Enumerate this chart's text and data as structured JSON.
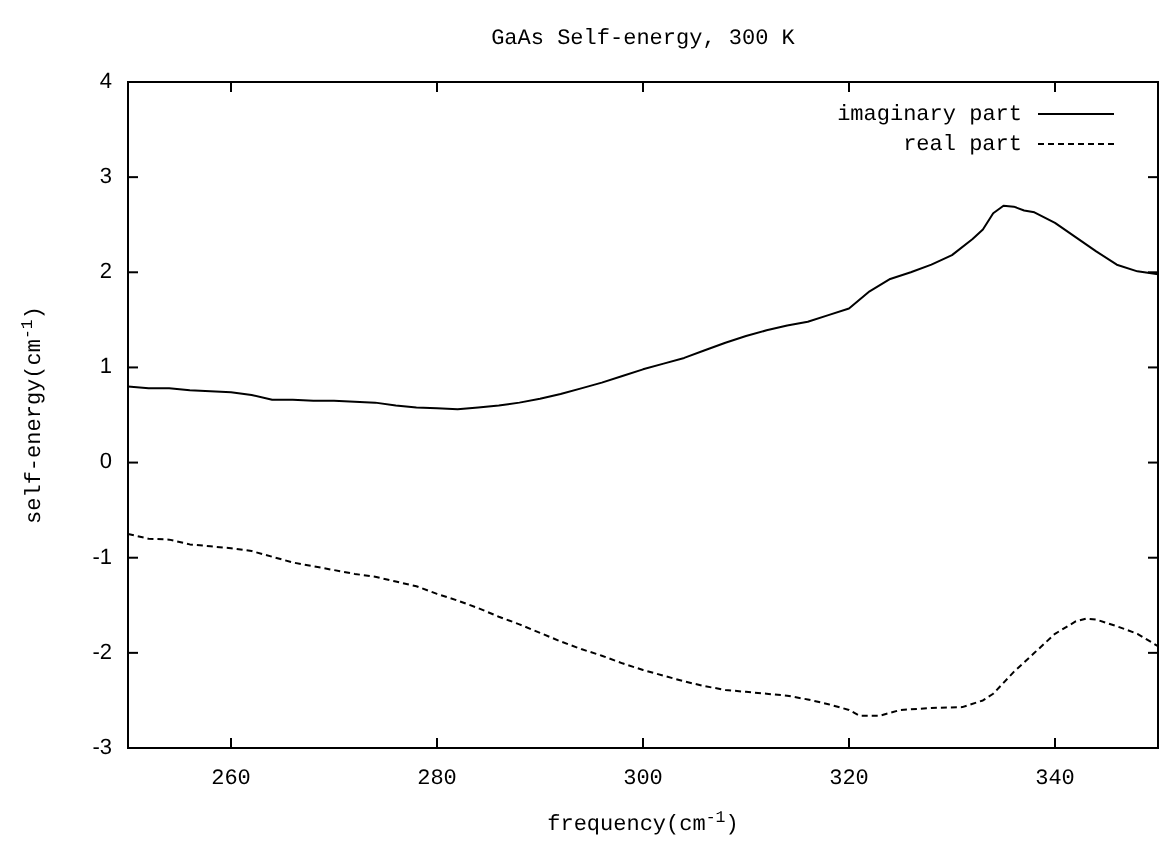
{
  "chart_data": {
    "type": "line",
    "title": "GaAs Self-energy, 300 K",
    "xlabel": "frequency(cm$^{-1}$)",
    "ylabel": "self-energy(cm$^{-1}$)",
    "xlim": [
      250,
      350
    ],
    "xticks": [
      260,
      280,
      300,
      320,
      340
    ],
    "ylim": [
      -3,
      4
    ],
    "yticks": [
      -3,
      -2,
      -1,
      0,
      1,
      2,
      3,
      4
    ],
    "grid": false,
    "legend": "top right",
    "marker": "none",
    "series": [
      {
        "name": "imaginary part",
        "color": "#000000",
        "line_style": "solid",
        "x": [
          250,
          252,
          254,
          256,
          258,
          260,
          262,
          264,
          266,
          268,
          270,
          272,
          274,
          276,
          278,
          280,
          282,
          284,
          286,
          288,
          290,
          292,
          294,
          296,
          298,
          300,
          302,
          304,
          306,
          308,
          310,
          312,
          314,
          316,
          318,
          320,
          322,
          324,
          326,
          328,
          330,
          332,
          333,
          334,
          335,
          336,
          337,
          338,
          340,
          342,
          344,
          346,
          348,
          350
        ],
        "values": [
          0.8,
          0.78,
          0.78,
          0.76,
          0.75,
          0.74,
          0.71,
          0.66,
          0.66,
          0.65,
          0.65,
          0.64,
          0.63,
          0.6,
          0.58,
          0.57,
          0.56,
          0.58,
          0.6,
          0.63,
          0.67,
          0.72,
          0.78,
          0.84,
          0.91,
          0.98,
          1.04,
          1.1,
          1.18,
          1.26,
          1.33,
          1.39,
          1.44,
          1.48,
          1.55,
          1.62,
          1.8,
          1.93,
          2.0,
          2.08,
          2.18,
          2.35,
          2.45,
          2.62,
          2.7,
          2.69,
          2.65,
          2.63,
          2.52,
          2.37,
          2.22,
          2.08,
          2.01,
          1.98
        ]
      },
      {
        "name": "real part",
        "color": "#000000",
        "line_style": "dashed",
        "x": [
          250,
          252,
          254,
          256,
          258,
          260,
          262,
          264,
          266,
          268,
          270,
          272,
          274,
          276,
          278,
          280,
          282,
          284,
          286,
          288,
          290,
          292,
          294,
          296,
          298,
          300,
          302,
          304,
          306,
          308,
          310,
          312,
          314,
          316,
          318,
          320,
          321,
          323,
          325,
          328,
          331,
          333,
          334,
          336,
          338,
          340,
          342,
          343,
          344,
          346,
          348,
          350
        ],
        "values": [
          -0.75,
          -0.8,
          -0.81,
          -0.86,
          -0.88,
          -0.9,
          -0.93,
          -0.99,
          -1.05,
          -1.09,
          -1.13,
          -1.17,
          -1.2,
          -1.25,
          -1.3,
          -1.38,
          -1.45,
          -1.53,
          -1.62,
          -1.7,
          -1.79,
          -1.88,
          -1.96,
          -2.03,
          -2.11,
          -2.18,
          -2.24,
          -2.3,
          -2.35,
          -2.39,
          -2.41,
          -2.43,
          -2.45,
          -2.49,
          -2.54,
          -2.6,
          -2.66,
          -2.66,
          -2.6,
          -2.58,
          -2.57,
          -2.5,
          -2.43,
          -2.2,
          -2.0,
          -1.8,
          -1.67,
          -1.64,
          -1.65,
          -1.72,
          -1.8,
          -1.93
        ]
      }
    ]
  }
}
